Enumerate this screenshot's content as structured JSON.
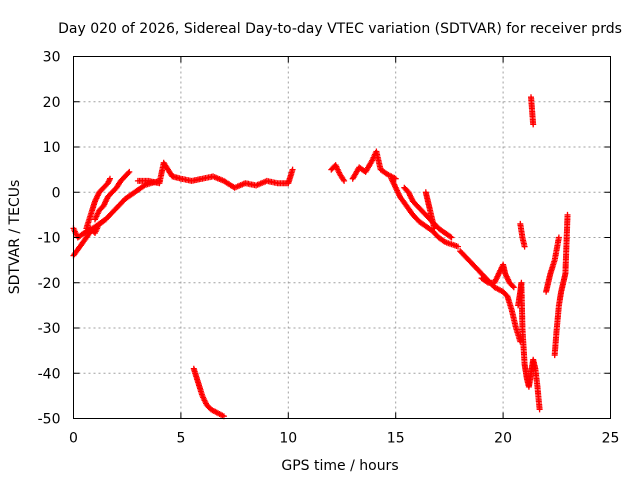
{
  "chart_data": {
    "type": "scatter",
    "title": "Day 020 of 2026, Sidereal Day-to-day VTEC variation (SDTVAR) for receiver prds",
    "xlabel": "GPS time / hours",
    "ylabel": "SDTVAR / TECUs",
    "xlim": [
      0,
      25
    ],
    "ylim": [
      -50,
      30
    ],
    "xticks": [
      "0",
      "5",
      "10",
      "15",
      "20",
      "25"
    ],
    "yticks": [
      "-50",
      "-40",
      "-30",
      "-20",
      "-10",
      "0",
      "10",
      "20",
      "30"
    ],
    "xtick_values": [
      0,
      5,
      10,
      15,
      20,
      25
    ],
    "ytick_values": [
      -50,
      -40,
      -30,
      -20,
      -10,
      0,
      10,
      20,
      30
    ],
    "grid": true,
    "marker": "+",
    "color": "#ff0000",
    "segments": [
      {
        "x": [
          0.0,
          0.2,
          0.5,
          0.8,
          1.0,
          1.2,
          1.5
        ],
        "y": [
          -8,
          -10,
          -9,
          -8,
          -9,
          -7,
          -6
        ]
      },
      {
        "x": [
          0.0,
          0.3,
          0.6,
          0.9,
          1.2,
          1.5,
          1.8,
          2.1,
          2.4,
          2.7,
          3.0,
          3.3,
          3.6,
          4.0
        ],
        "y": [
          -14,
          -12,
          -10,
          -8,
          -7,
          -6,
          -4.5,
          -3,
          -1.5,
          -0.5,
          0.5,
          1.5,
          2,
          2.5
        ]
      },
      {
        "x": [
          0.6,
          0.8,
          1.0,
          1.2,
          1.4,
          1.6,
          1.7
        ],
        "y": [
          -8,
          -5,
          -2,
          0,
          1,
          2,
          3
        ]
      },
      {
        "x": [
          1.0,
          1.2,
          1.4,
          1.6,
          1.8,
          2.0,
          2.2,
          2.4,
          2.6
        ],
        "y": [
          -6,
          -4,
          -3,
          -1,
          0,
          1,
          2.5,
          3.5,
          4.5
        ]
      },
      {
        "x": [
          3.0,
          3.5,
          4.0,
          4.2,
          4.4,
          4.6,
          5.0,
          5.5,
          6.0,
          6.5,
          7.0,
          7.5,
          8.0,
          8.5,
          9.0,
          9.5,
          10.0,
          10.2
        ],
        "y": [
          2.5,
          2.5,
          2,
          6.5,
          5,
          3.5,
          3,
          2.5,
          3,
          3.5,
          2.5,
          1,
          2,
          1.5,
          2.5,
          2,
          2,
          5
        ]
      },
      {
        "x": [
          5.6,
          5.8,
          6.0,
          6.2,
          6.4,
          6.6,
          6.8,
          7.0
        ],
        "y": [
          -39,
          -42,
          -45,
          -47,
          -48,
          -48.5,
          -49,
          -49.5
        ]
      },
      {
        "x": [
          12.0,
          12.2,
          12.4,
          12.6
        ],
        "y": [
          5,
          6,
          4,
          2.5
        ]
      },
      {
        "x": [
          13.0,
          13.3,
          13.6,
          13.9,
          14.1,
          14.3,
          14.6,
          15.0
        ],
        "y": [
          3,
          5.5,
          4.5,
          7,
          9,
          5,
          4,
          3
        ]
      },
      {
        "x": [
          14.8,
          15.0,
          15.2,
          15.5,
          15.8,
          16.1,
          16.4,
          16.7,
          17.0,
          17.3,
          17.6,
          17.9
        ],
        "y": [
          3,
          1,
          -1,
          -3,
          -5,
          -6.5,
          -7.5,
          -8.5,
          -10,
          -11,
          -11.5,
          -12
        ]
      },
      {
        "x": [
          15.4,
          15.6,
          15.8,
          16.0,
          16.2,
          16.4,
          16.6,
          16.8,
          17.0,
          17.3,
          17.6
        ],
        "y": [
          1,
          0,
          -2,
          -3,
          -4,
          -5,
          -6,
          -7,
          -8,
          -9,
          -10
        ]
      },
      {
        "x": [
          16.4,
          16.5,
          16.6,
          16.7,
          16.8
        ],
        "y": [
          0,
          -2,
          -4,
          -6,
          -8
        ]
      },
      {
        "x": [
          18.0,
          18.4,
          18.8,
          19.2,
          19.6,
          20.0,
          20.2,
          20.4,
          20.6,
          20.8
        ],
        "y": [
          -13,
          -15,
          -17,
          -19,
          -21,
          -22,
          -23,
          -26,
          -30,
          -33
        ]
      },
      {
        "x": [
          19.0,
          19.3,
          19.6,
          19.9,
          20.0,
          20.1,
          20.3,
          20.5
        ],
        "y": [
          -19,
          -20,
          -20,
          -17,
          -16,
          -18,
          -20,
          -21
        ]
      },
      {
        "x": [
          20.7,
          20.8,
          20.85,
          20.9,
          20.95,
          21.0,
          21.1,
          21.2,
          21.3,
          21.4,
          21.5,
          21.6,
          21.7
        ],
        "y": [
          -25,
          -22,
          -20,
          -30,
          -34,
          -38,
          -41,
          -43,
          -40,
          -37,
          -39,
          -43,
          -48
        ]
      },
      {
        "x": [
          20.8,
          20.9,
          21.0
        ],
        "y": [
          -7,
          -10,
          -12
        ]
      },
      {
        "x": [
          21.3,
          21.4
        ],
        "y": [
          21,
          15
        ]
      },
      {
        "x": [
          22.4,
          22.5,
          22.6,
          22.7,
          22.8,
          22.9,
          23.0
        ],
        "y": [
          -36,
          -30,
          -25,
          -22,
          -20,
          -18,
          -5
        ]
      },
      {
        "x": [
          22.0,
          22.2,
          22.4,
          22.6
        ],
        "y": [
          -22,
          -18,
          -15,
          -10
        ]
      }
    ]
  }
}
